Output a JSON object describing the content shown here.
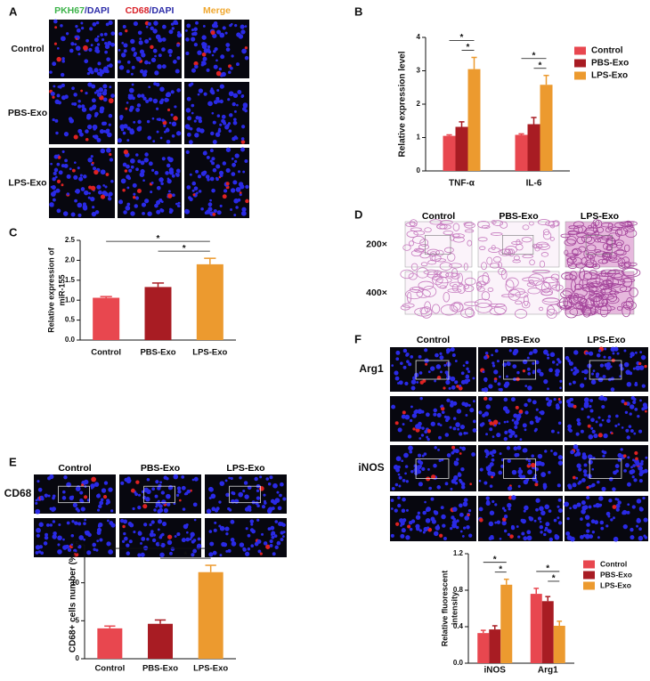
{
  "image_panels": [
    {
      "letter": "A",
      "style": "fluorescence",
      "columns": [
        [
          {
            "text": "PKH67",
            "color": "#3db34a"
          },
          {
            "text": "/DAPI",
            "color": "#2c2ca8"
          }
        ],
        [
          {
            "text": "CD68",
            "color": "#d9242b"
          },
          {
            "text": "/DAPI",
            "color": "#2c2ca8"
          }
        ],
        [
          {
            "text": "Merge",
            "color": "#f0a830"
          }
        ]
      ],
      "rows": [
        {
          "text": "Control",
          "color": "#000000"
        },
        {
          "text": "PBS-Exo",
          "color": "#000000"
        },
        {
          "text": "LPS-Exo",
          "color": "#000000"
        }
      ]
    },
    {
      "letter": "D",
      "style": "histology",
      "columns": [
        [
          {
            "text": "Control",
            "color": "#000000"
          }
        ],
        [
          {
            "text": "PBS-Exo",
            "color": "#000000"
          }
        ],
        [
          {
            "text": "LPS-Exo",
            "color": "#000000"
          }
        ]
      ],
      "rows": [
        {
          "text": "200×",
          "color": "#000000"
        },
        {
          "text": "400×",
          "color": "#000000"
        }
      ]
    },
    {
      "letter": "E",
      "style": "fluorescence",
      "columns": [
        [
          {
            "text": "Control",
            "color": "#000000"
          }
        ],
        [
          {
            "text": "PBS-Exo",
            "color": "#000000"
          }
        ],
        [
          {
            "text": "LPS-Exo",
            "color": "#000000"
          }
        ]
      ],
      "rows": [
        {
          "text": "CD68",
          "color": "#d9242b"
        }
      ]
    },
    {
      "letter": "F",
      "style": "fluorescence",
      "columns": [
        [
          {
            "text": "Control",
            "color": "#000000"
          }
        ],
        [
          {
            "text": "PBS-Exo",
            "color": "#000000"
          }
        ],
        [
          {
            "text": "LPS-Exo",
            "color": "#000000"
          }
        ]
      ],
      "rows": [
        {
          "text": "Arg1",
          "color": "#3aa64a"
        },
        {
          "text": "iNOS",
          "color": "#d9242b"
        }
      ]
    }
  ],
  "chart_data": [
    {
      "type": "bar",
      "panel": "B",
      "ylabel": [
        "Relative expression level"
      ],
      "categories": [
        "TNF-α",
        "IL-6"
      ],
      "series": [
        {
          "name": "Control",
          "color": "#e8474f",
          "values": [
            1.05,
            1.08
          ],
          "errors": [
            0.03,
            0.03
          ]
        },
        {
          "name": "PBS-Exo",
          "color": "#a81c23",
          "values": [
            1.32,
            1.4
          ],
          "errors": [
            0.15,
            0.2
          ]
        },
        {
          "name": "LPS-Exo",
          "color": "#ec9a2f",
          "values": [
            3.05,
            2.58
          ],
          "errors": [
            0.35,
            0.28
          ]
        }
      ],
      "ylim": [
        0,
        4
      ],
      "yticks": [
        0,
        1,
        2,
        3,
        4
      ],
      "significance": [
        {
          "text": "*",
          "category": "TNF-α",
          "pair": [
            "PBS-Exo",
            "LPS-Exo"
          ]
        },
        {
          "text": "*",
          "category": "TNF-α",
          "pair": [
            "Control",
            "LPS-Exo"
          ]
        },
        {
          "text": "*",
          "category": "IL-6",
          "pair": [
            "PBS-Exo",
            "LPS-Exo"
          ]
        },
        {
          "text": "*",
          "category": "IL-6",
          "pair": [
            "Control",
            "LPS-Exo"
          ]
        }
      ]
    },
    {
      "type": "bar",
      "panel": "C",
      "ylabel": [
        "Relative expression of",
        "miR-155"
      ],
      "categories": [
        "Control",
        "PBS-Exo",
        "LPS-Exo"
      ],
      "values": [
        1.06,
        1.33,
        1.9
      ],
      "errors": [
        0.03,
        0.1,
        0.15
      ],
      "colors": [
        "#e8474f",
        "#a81c23",
        "#ec9a2f"
      ],
      "ylim": [
        0,
        2.5
      ],
      "yticks": [
        {
          "value": 0,
          "label": "0.0"
        },
        0.5,
        {
          "value": 1,
          "label": "1.0"
        },
        1.5,
        {
          "value": 2,
          "label": "2.0"
        },
        2.5
      ],
      "significance": [
        {
          "text": "*",
          "pair": [
            "PBS-Exo",
            "LPS-Exo"
          ]
        },
        {
          "text": "*",
          "pair": [
            "Control",
            "LPS-Exo"
          ]
        }
      ]
    },
    {
      "type": "bar",
      "ylabel": [
        "CD68+ cells number (%)"
      ],
      "categories": [
        "Control",
        "PBS-Exo",
        "LPS-Exo"
      ],
      "values": [
        4,
        4.6,
        11.4
      ],
      "errors": [
        0.3,
        0.5,
        0.9
      ],
      "colors": [
        "#e8474f",
        "#a81c23",
        "#ec9a2f"
      ],
      "ylim": [
        0,
        15
      ],
      "yticks": [
        0,
        5,
        10,
        15
      ],
      "significance": [
        {
          "text": "*",
          "pair": [
            "PBS-Exo",
            "LPS-Exo"
          ]
        },
        {
          "text": "*",
          "pair": [
            "Control",
            "LPS-Exo"
          ]
        }
      ]
    },
    {
      "type": "bar",
      "ylabel": [
        "Relative fluorescent",
        "intensity"
      ],
      "categories": [
        "iNOS",
        "Arg1"
      ],
      "series": [
        {
          "name": "Control",
          "color": "#e8474f",
          "values": [
            0.33,
            0.76
          ],
          "errors": [
            0.03,
            0.06
          ]
        },
        {
          "name": "PBS-Exo",
          "color": "#a81c23",
          "values": [
            0.37,
            0.68
          ],
          "errors": [
            0.04,
            0.05
          ]
        },
        {
          "name": "LPS-Exo",
          "color": "#ec9a2f",
          "values": [
            0.86,
            0.41
          ],
          "errors": [
            0.06,
            0.05
          ]
        }
      ],
      "ylim": [
        0,
        1.2
      ],
      "yticks": [
        {
          "value": 0,
          "label": "0.0"
        },
        0.4,
        0.8,
        1.2
      ],
      "significance": [
        {
          "text": "*",
          "category": "iNOS",
          "pair": [
            "PBS-Exo",
            "LPS-Exo"
          ]
        },
        {
          "text": "*",
          "category": "iNOS",
          "pair": [
            "Control",
            "LPS-Exo"
          ]
        },
        {
          "text": "*",
          "category": "Arg1",
          "pair": [
            "PBS-Exo",
            "LPS-Exo"
          ]
        },
        {
          "text": "*",
          "category": "Arg1",
          "pair": [
            "Control",
            "LPS-Exo"
          ]
        }
      ]
    }
  ]
}
